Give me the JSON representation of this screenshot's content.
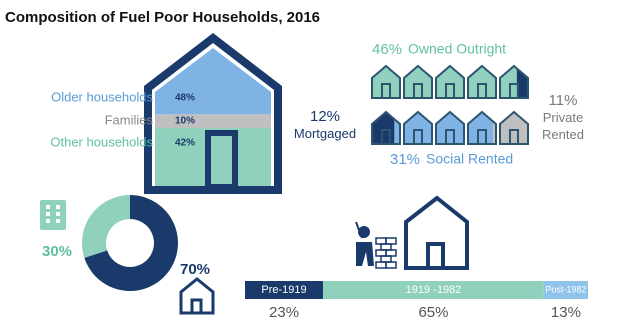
{
  "chart_data": [
    {
      "type": "house-stack",
      "title": "Composition of Fuel Poor Households, 2016",
      "categories": [
        "Older households",
        "Families",
        "Other households"
      ],
      "values": [
        48,
        10,
        42
      ],
      "value_labels": [
        "48%",
        "10%",
        "42%"
      ],
      "colors": [
        "#7fb2e5",
        "#bfbfbf",
        "#8fd1bd"
      ]
    },
    {
      "type": "icon-array",
      "categories": [
        "Owned Outright",
        "Mortgaged",
        "Social Rented",
        "Private Rented"
      ],
      "values": [
        46,
        12,
        31,
        11
      ],
      "value_labels": [
        "46%",
        "12%",
        "31%",
        "11%"
      ],
      "colors": [
        "#8fd1bd",
        "#1a3a6b",
        "#7fb2e5",
        "#bfbfbf"
      ]
    },
    {
      "type": "donut",
      "categories": [
        null,
        null
      ],
      "values": [
        70,
        30
      ],
      "value_labels": [
        "70%",
        "30%"
      ],
      "colors": [
        "#1a3a6b",
        "#8fd1bd"
      ]
    },
    {
      "type": "stacked-bar",
      "categories": [
        "Pre-1919",
        "1919 -1982",
        "Post-1982"
      ],
      "values": [
        23,
        65,
        13
      ],
      "value_labels": [
        "23%",
        "65%",
        "13%"
      ],
      "colors": [
        "#1a3a6b",
        "#8fd1bd",
        "#8fc3ea"
      ]
    }
  ]
}
